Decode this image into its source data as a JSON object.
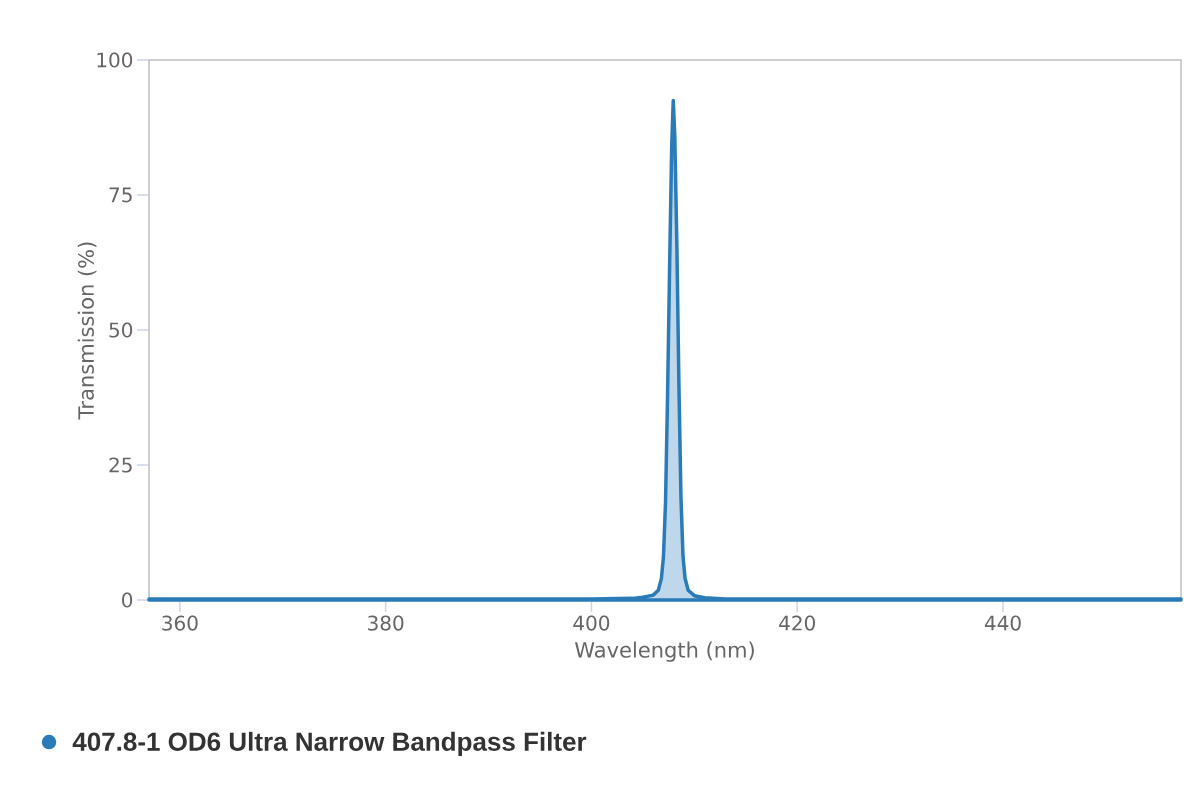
{
  "chart_data": {
    "type": "area",
    "xlabel": "Wavelength (nm)",
    "ylabel": "Transmission (%)",
    "x": [
      357,
      400,
      404,
      405,
      406,
      406.5,
      406.8,
      407.0,
      407.2,
      407.4,
      407.6,
      407.8,
      407.95,
      408.1,
      408.3,
      408.5,
      408.7,
      408.9,
      409.1,
      409.4,
      410,
      411,
      413,
      457.3
    ],
    "series": [
      {
        "name": "407.8-1 OD6 Ultra Narrow Bandpass Filter",
        "color": "#2b7bb9",
        "values": [
          0.2,
          0.2,
          0.3,
          0.5,
          0.9,
          1.8,
          4,
          8,
          18,
          38,
          62,
          84,
          92.5,
          86,
          66,
          40,
          19,
          8,
          4,
          1.8,
          0.8,
          0.4,
          0.2,
          0.2
        ]
      }
    ],
    "xlim": [
      357,
      457.3
    ],
    "ylim": [
      0,
      100
    ],
    "xticks": [
      360,
      380,
      400,
      420,
      440
    ],
    "yticks": [
      0,
      25,
      50,
      75,
      100
    ],
    "grid": false,
    "legend": "bottom left"
  }
}
